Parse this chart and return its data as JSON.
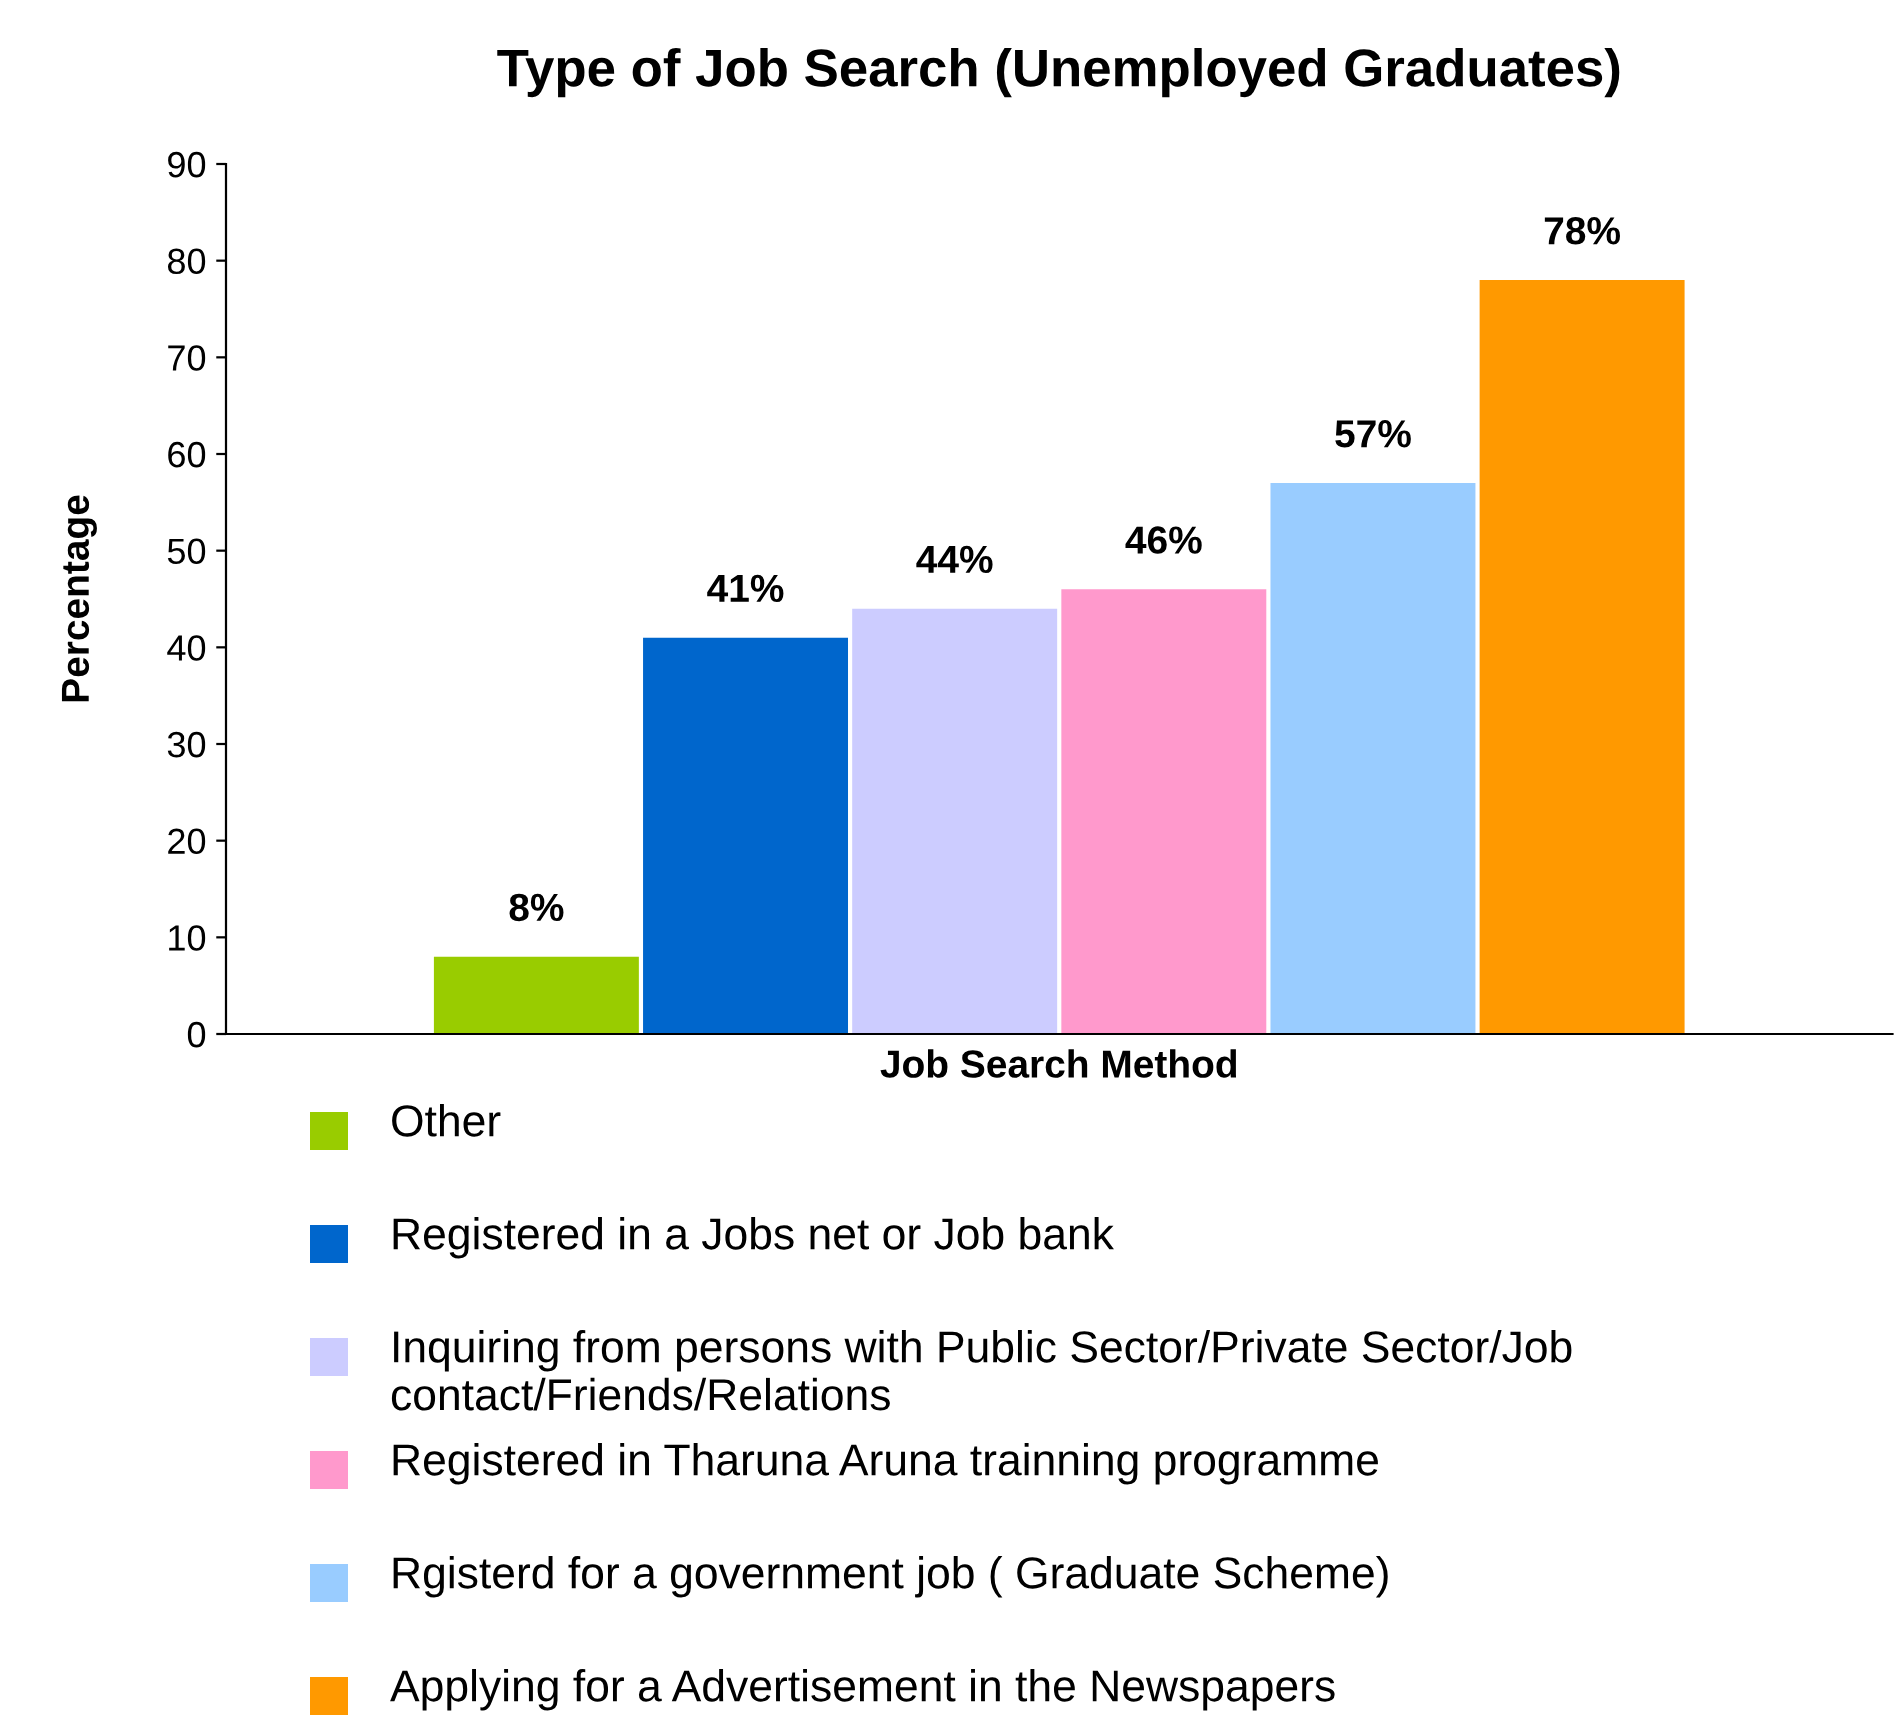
{
  "chart_data": {
    "type": "bar",
    "title": "Type of Job Search (Unemployed Graduates)",
    "xlabel": "Job Search Method",
    "ylabel": "Percentage",
    "categories": [
      null
    ],
    "series": [
      {
        "name": "Other",
        "color": "#99cc00",
        "values": [
          8
        ],
        "value_labels": [
          "8%"
        ]
      },
      {
        "name": "Registered in a Jobs net or Job bank",
        "color": "#0066cc",
        "values": [
          41
        ],
        "value_labels": [
          "41%"
        ]
      },
      {
        "name": "Inquiring from persons with Public Sector/Private Sector/Job contact/Friends/Relations",
        "color": "#ccccff",
        "values": [
          44
        ],
        "value_labels": [
          "44%"
        ]
      },
      {
        "name": "Registered in Tharuna Aruna trainning programme",
        "color": "#ff99cc",
        "values": [
          46
        ],
        "value_labels": [
          "46%"
        ]
      },
      {
        "name": "Rgisterd for a government job ( Graduate Scheme)",
        "color": "#99ccff",
        "values": [
          57
        ],
        "value_labels": [
          "57%"
        ]
      },
      {
        "name": "Applying for a Advertisement in the Newspapers",
        "color": "#ff9900",
        "values": [
          78
        ],
        "value_labels": [
          "78%"
        ]
      }
    ],
    "ylim": [
      0,
      90
    ],
    "yticks": [
      0,
      10,
      20,
      30,
      40,
      50,
      60,
      70,
      80,
      90
    ],
    "grid": false,
    "legend": "bottom"
  }
}
